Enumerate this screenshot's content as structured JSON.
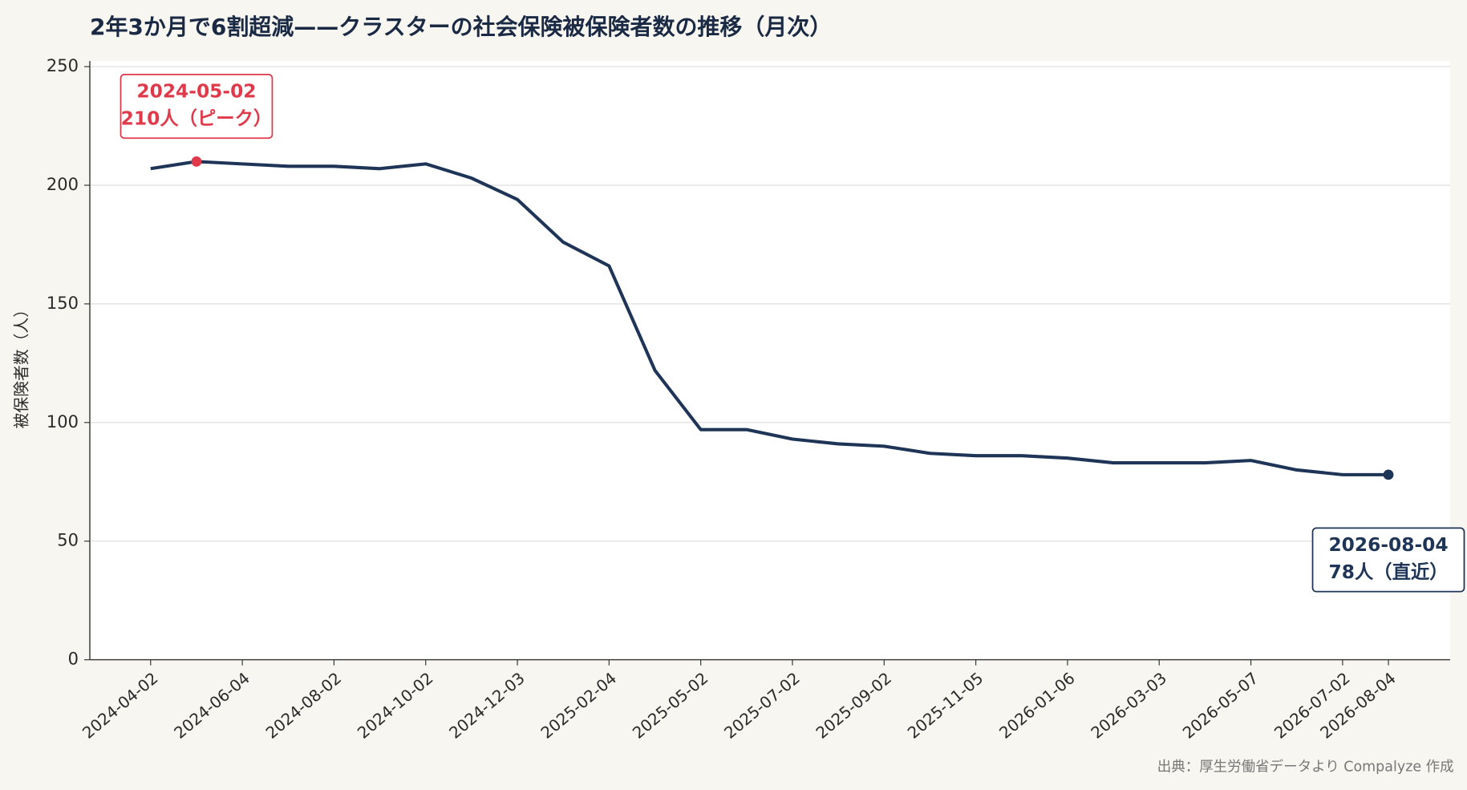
{
  "chart_data": {
    "type": "line",
    "title": "2年3か月で6割超減——クラスターの社会保険被保険者数の推移（月次）",
    "y_label": "被保険者数（人）",
    "source": "出典：厚生労働省データより Compalyze 作成",
    "categories": [
      "2024-04-02",
      null,
      "2024-06-04",
      null,
      "2024-08-02",
      null,
      "2024-10-02",
      null,
      "2024-12-03",
      null,
      "2025-02-04",
      null,
      "2025-05-02",
      null,
      "2025-07-02",
      null,
      "2025-09-02",
      null,
      "2025-11-05",
      null,
      "2026-01-06",
      null,
      "2026-03-03",
      null,
      "2026-05-07",
      null,
      "2026-07-02",
      "2026-08-04"
    ],
    "series": [
      {
        "name": "被保険者数",
        "color": "#1f3557",
        "values": [
          207,
          210,
          209,
          208,
          208,
          207,
          209,
          203,
          194,
          176,
          166,
          122,
          97,
          97,
          93,
          91,
          90,
          87,
          86,
          86,
          85,
          83,
          83,
          83,
          84,
          80,
          78,
          78
        ]
      }
    ],
    "ylim": [
      0,
      250
    ],
    "yticks": [
      0,
      50,
      100,
      150,
      200,
      250
    ],
    "grid": true,
    "annotations": [
      {
        "lines": [
          "2024-05-02",
          "210人（ピーク）"
        ],
        "color": "#e0394a"
      },
      {
        "lines": [
          "2026-08-04",
          "78人（直近）"
        ],
        "color": "#1f3557"
      }
    ]
  }
}
